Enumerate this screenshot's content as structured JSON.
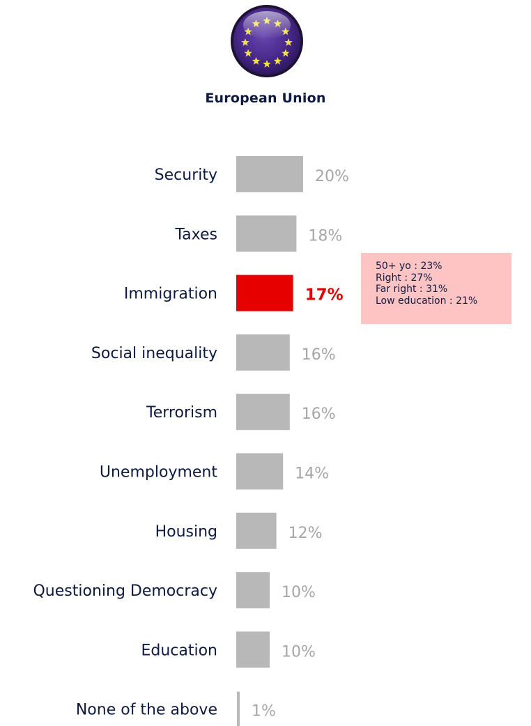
{
  "header": {
    "title": "European Union"
  },
  "colors": {
    "bar": "#b8b8b8",
    "highlight_bar": "#e60000",
    "value_label": "#a6a6a6",
    "highlight_label": "#e60000",
    "category_label": "#0e1a40",
    "callout_bg": "#fec4c4",
    "flag_blue": "#4a2a8c",
    "flag_star": "#f4e24a"
  },
  "logo": {
    "icon": "eu-flag-icon"
  },
  "chart_data": {
    "type": "bar",
    "orientation": "horizontal",
    "title": "European Union",
    "categories": [
      "Security",
      "Taxes",
      "Immigration",
      "Social inequality",
      "Terrorism",
      "Unemployment",
      "Housing",
      "Questioning Democracy",
      "Education",
      "None of the above"
    ],
    "values": [
      20,
      18,
      17,
      16,
      16,
      14,
      12,
      10,
      10,
      1
    ],
    "value_labels": [
      "20%",
      "18%",
      "17%",
      "16%",
      "16%",
      "14%",
      "12%",
      "10%",
      "10%",
      "1%"
    ],
    "highlight_index": 2,
    "unit": "%",
    "grid": false,
    "legend": "none"
  },
  "callout": {
    "lines": [
      "50+ yo : 23%",
      "Right : 27%",
      "Far right : 31%",
      "Low education : 21%"
    ]
  }
}
